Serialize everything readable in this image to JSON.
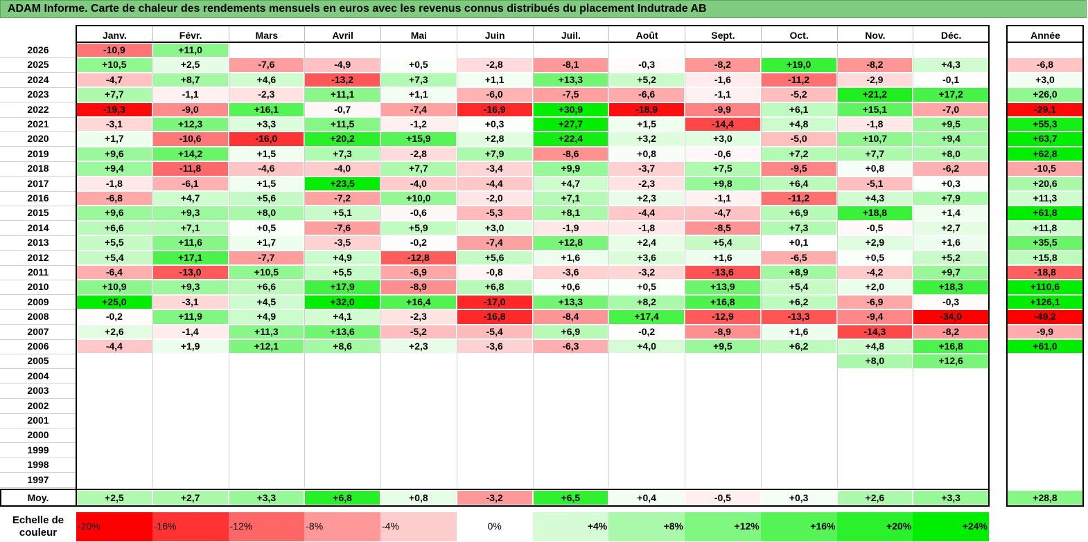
{
  "title": "ADAM Informe. Carte de chaleur des rendements mensuels en euros avec les revenus connus distribués du placement Indutrade AB",
  "chart_data": {
    "type": "heatmap",
    "months": [
      "Janv.",
      "Févr.",
      "Mars",
      "Avril",
      "Mai",
      "Juin",
      "Juil.",
      "Août",
      "Sept.",
      "Oct.",
      "Nov.",
      "Déc."
    ],
    "year_header": "Année",
    "rows": [
      {
        "year": "2026",
        "values": [
          "-10,9",
          "+11,0",
          "",
          "",
          "",
          "",
          "",
          "",
          "",
          "",
          "",
          ""
        ],
        "annual": ""
      },
      {
        "year": "2025",
        "values": [
          "+10,5",
          "+2,5",
          "-7,6",
          "-4,9",
          "+0,5",
          "-2,8",
          "-8,1",
          "-0,3",
          "-8,2",
          "+19,0",
          "-8,2",
          "+4,3"
        ],
        "annual": "-6,8"
      },
      {
        "year": "2024",
        "values": [
          "-4,7",
          "+8,7",
          "+4,6",
          "-13,2",
          "+7,3",
          "+1,1",
          "+13,3",
          "+5,2",
          "-1,6",
          "-11,2",
          "-2,9",
          "-0,1"
        ],
        "annual": "+3,0"
      },
      {
        "year": "2023",
        "values": [
          "+7,7",
          "-1,1",
          "-2,3",
          "+11,1",
          "+1,1",
          "-6,0",
          "-7,5",
          "-6,6",
          "-1,1",
          "-5,2",
          "+21,2",
          "+17,2"
        ],
        "annual": "+26,0"
      },
      {
        "year": "2022",
        "values": [
          "-19,3",
          "-9,0",
          "+16,1",
          "-0,7",
          "-7,4",
          "-16,9",
          "+30,9",
          "-18,9",
          "-9,9",
          "+6,1",
          "+15,1",
          "-7,0"
        ],
        "annual": "-29,1"
      },
      {
        "year": "2021",
        "values": [
          "-3,1",
          "+12,3",
          "+3,3",
          "+11,5",
          "-1,2",
          "+0,3",
          "+27,7",
          "+1,5",
          "-14,4",
          "+4,8",
          "-1,8",
          "+9,5"
        ],
        "annual": "+55,3"
      },
      {
        "year": "2020",
        "values": [
          "+1,7",
          "-10,6",
          "-16,0",
          "+20,2",
          "+15,9",
          "+2,8",
          "+22,4",
          "+3,2",
          "+3,0",
          "-5,0",
          "+10,7",
          "+9,4"
        ],
        "annual": "+63,7"
      },
      {
        "year": "2019",
        "values": [
          "+9,6",
          "+14,2",
          "+1,5",
          "+7,3",
          "-2,8",
          "+7,9",
          "-8,6",
          "+0,8",
          "-0,6",
          "+7,2",
          "+7,7",
          "+8,0"
        ],
        "annual": "+62,8"
      },
      {
        "year": "2018",
        "values": [
          "+9,4",
          "-11,8",
          "-4,6",
          "-4,0",
          "+7,7",
          "-3,4",
          "+9,9",
          "-3,7",
          "+7,5",
          "-9,5",
          "+0,8",
          "-6,2"
        ],
        "annual": "-10,5"
      },
      {
        "year": "2017",
        "values": [
          "-1,8",
          "-6,1",
          "+1,5",
          "+23,5",
          "-4,0",
          "-4,4",
          "+4,7",
          "-2,3",
          "+9,8",
          "+6,4",
          "-5,1",
          "+0,3"
        ],
        "annual": "+20,6"
      },
      {
        "year": "2016",
        "values": [
          "-6,8",
          "+4,7",
          "+5,6",
          "-7,2",
          "+10,0",
          "-2,0",
          "+7,1",
          "+2,3",
          "-1,1",
          "-11,2",
          "+4,3",
          "+7,9"
        ],
        "annual": "+11,3"
      },
      {
        "year": "2015",
        "values": [
          "+9,6",
          "+9,3",
          "+8,0",
          "+5,1",
          "-0,6",
          "-5,3",
          "+8,1",
          "-4,4",
          "-4,7",
          "+6,9",
          "+18,8",
          "+1,4"
        ],
        "annual": "+61,8"
      },
      {
        "year": "2014",
        "values": [
          "+6,6",
          "+7,1",
          "+0,5",
          "-7,6",
          "+5,9",
          "+3,0",
          "-1,9",
          "-1,8",
          "-8,5",
          "+7,3",
          "-0,5",
          "+2,7"
        ],
        "annual": "+11,8"
      },
      {
        "year": "2013",
        "values": [
          "+5,5",
          "+11,6",
          "+1,7",
          "-3,5",
          "-0,2",
          "-7,4",
          "+12,8",
          "+2,4",
          "+5,4",
          "+0,1",
          "+2,9",
          "+1,6"
        ],
        "annual": "+35,5"
      },
      {
        "year": "2012",
        "values": [
          "+5,4",
          "+17,1",
          "-7,7",
          "+4,9",
          "-12,8",
          "+5,6",
          "+1,6",
          "+3,6",
          "+1,6",
          "-6,5",
          "+0,5",
          "+5,2"
        ],
        "annual": "+15,8"
      },
      {
        "year": "2011",
        "values": [
          "-6,4",
          "-13,0",
          "+10,5",
          "+5,5",
          "-6,9",
          "-0,8",
          "-3,6",
          "-3,2",
          "-13,6",
          "+8,9",
          "-4,2",
          "+9,7"
        ],
        "annual": "-18,8"
      },
      {
        "year": "2010",
        "values": [
          "+10,9",
          "+9,3",
          "+6,6",
          "+17,9",
          "-8,9",
          "+6,8",
          "+0,6",
          "+0,5",
          "+13,9",
          "+5,4",
          "+2,0",
          "+18,3"
        ],
        "annual": "+110,6"
      },
      {
        "year": "2009",
        "values": [
          "+25,0",
          "-3,1",
          "+4,5",
          "+32,0",
          "+16,4",
          "-17,0",
          "+13,3",
          "+8,2",
          "+16,8",
          "+6,2",
          "-6,9",
          "-0,3"
        ],
        "annual": "+126,1"
      },
      {
        "year": "2008",
        "values": [
          "-0,2",
          "+11,9",
          "+4,9",
          "+4,1",
          "-2,3",
          "-16,8",
          "-8,4",
          "+17,4",
          "-12,9",
          "-13,3",
          "-9,4",
          "-34,0"
        ],
        "annual": "-49,2"
      },
      {
        "year": "2007",
        "values": [
          "+2,6",
          "-1,4",
          "+11,3",
          "+13,6",
          "-5,2",
          "-5,4",
          "+6,9",
          "-0,2",
          "-8,9",
          "+1,6",
          "-14,3",
          "-8,2"
        ],
        "annual": "-9,9"
      },
      {
        "year": "2006",
        "values": [
          "-4,4",
          "+1,9",
          "+12,1",
          "+8,6",
          "+2,3",
          "-3,6",
          "-6,3",
          "+4,0",
          "+9,5",
          "+6,2",
          "+4,8",
          "+16,8"
        ],
        "annual": "+61,0"
      },
      {
        "year": "2005",
        "values": [
          "",
          "",
          "",
          "",
          "",
          "",
          "",
          "",
          "",
          "",
          "+8,0",
          "+12,6"
        ],
        "annual": ""
      },
      {
        "year": "2004",
        "values": [
          "",
          "",
          "",
          "",
          "",
          "",
          "",
          "",
          "",
          "",
          "",
          ""
        ],
        "annual": ""
      },
      {
        "year": "2003",
        "values": [
          "",
          "",
          "",
          "",
          "",
          "",
          "",
          "",
          "",
          "",
          "",
          ""
        ],
        "annual": ""
      },
      {
        "year": "2002",
        "values": [
          "",
          "",
          "",
          "",
          "",
          "",
          "",
          "",
          "",
          "",
          "",
          ""
        ],
        "annual": ""
      },
      {
        "year": "2001",
        "values": [
          "",
          "",
          "",
          "",
          "",
          "",
          "",
          "",
          "",
          "",
          "",
          ""
        ],
        "annual": ""
      },
      {
        "year": "2000",
        "values": [
          "",
          "",
          "",
          "",
          "",
          "",
          "",
          "",
          "",
          "",
          "",
          ""
        ],
        "annual": ""
      },
      {
        "year": "1999",
        "values": [
          "",
          "",
          "",
          "",
          "",
          "",
          "",
          "",
          "",
          "",
          "",
          ""
        ],
        "annual": ""
      },
      {
        "year": "1998",
        "values": [
          "",
          "",
          "",
          "",
          "",
          "",
          "",
          "",
          "",
          "",
          "",
          ""
        ],
        "annual": ""
      },
      {
        "year": "1997",
        "values": [
          "",
          "",
          "",
          "",
          "",
          "",
          "",
          "",
          "",
          "",
          "",
          ""
        ],
        "annual": ""
      }
    ],
    "average": {
      "label": "Moy.",
      "values": [
        "+2,5",
        "+2,7",
        "+3,3",
        "+6,8",
        "+0,8",
        "-3,2",
        "+6,5",
        "+0,4",
        "-0,5",
        "+0,3",
        "+2,6",
        "+3,3"
      ],
      "annual": "+28,8"
    },
    "color_scale": {
      "label": "Echelle de couleur",
      "stops": [
        "-20%",
        "-16%",
        "-12%",
        "-8%",
        "-4%",
        "0%",
        "+4%",
        "+8%",
        "+12%",
        "+16%",
        "+20%",
        "+24%"
      ],
      "stop_values": [
        -20,
        -16,
        -12,
        -8,
        -4,
        0,
        4,
        8,
        12,
        16,
        20,
        24
      ],
      "negative_color": "#ff0000",
      "neutral_color": "#ffffff",
      "positive_color": "#00ee00"
    }
  }
}
